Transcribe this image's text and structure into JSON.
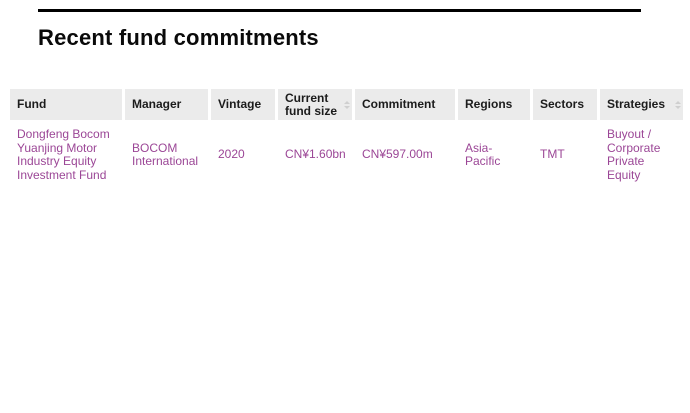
{
  "page": {
    "heading": "Recent fund commitments"
  },
  "colors": {
    "link_text": "#9b4696",
    "header_bg": "#ebebeb",
    "header_text": "#1c1c1c",
    "rule": "#000000"
  },
  "table": {
    "columns": [
      {
        "id": "fund",
        "label": "Fund",
        "sort_indicator_visible": false
      },
      {
        "id": "manager",
        "label": "Manager",
        "sort_indicator_visible": false
      },
      {
        "id": "vintage",
        "label": "Vintage",
        "sort_indicator_visible": false
      },
      {
        "id": "current_fund_size",
        "label": "Current fund size",
        "sort_indicator_visible": true
      },
      {
        "id": "commitment",
        "label": "Commitment",
        "sort_indicator_visible": false
      },
      {
        "id": "regions",
        "label": "Regions",
        "sort_indicator_visible": false
      },
      {
        "id": "sectors",
        "label": "Sectors",
        "sort_indicator_visible": false
      },
      {
        "id": "strategies",
        "label": "Strategies",
        "sort_indicator_visible": true
      }
    ],
    "rows": [
      {
        "fund": "Dongfeng Bocom Yuanjing Motor Industry Equity Investment Fund",
        "manager": "BOCOM International",
        "vintage": "2020",
        "current_fund_size": "CN¥1.60bn",
        "commitment": "CN¥597.00m",
        "regions": "Asia-Pacific",
        "sectors": "TMT",
        "strategies": "Buyout / Corporate Private Equity"
      }
    ]
  }
}
